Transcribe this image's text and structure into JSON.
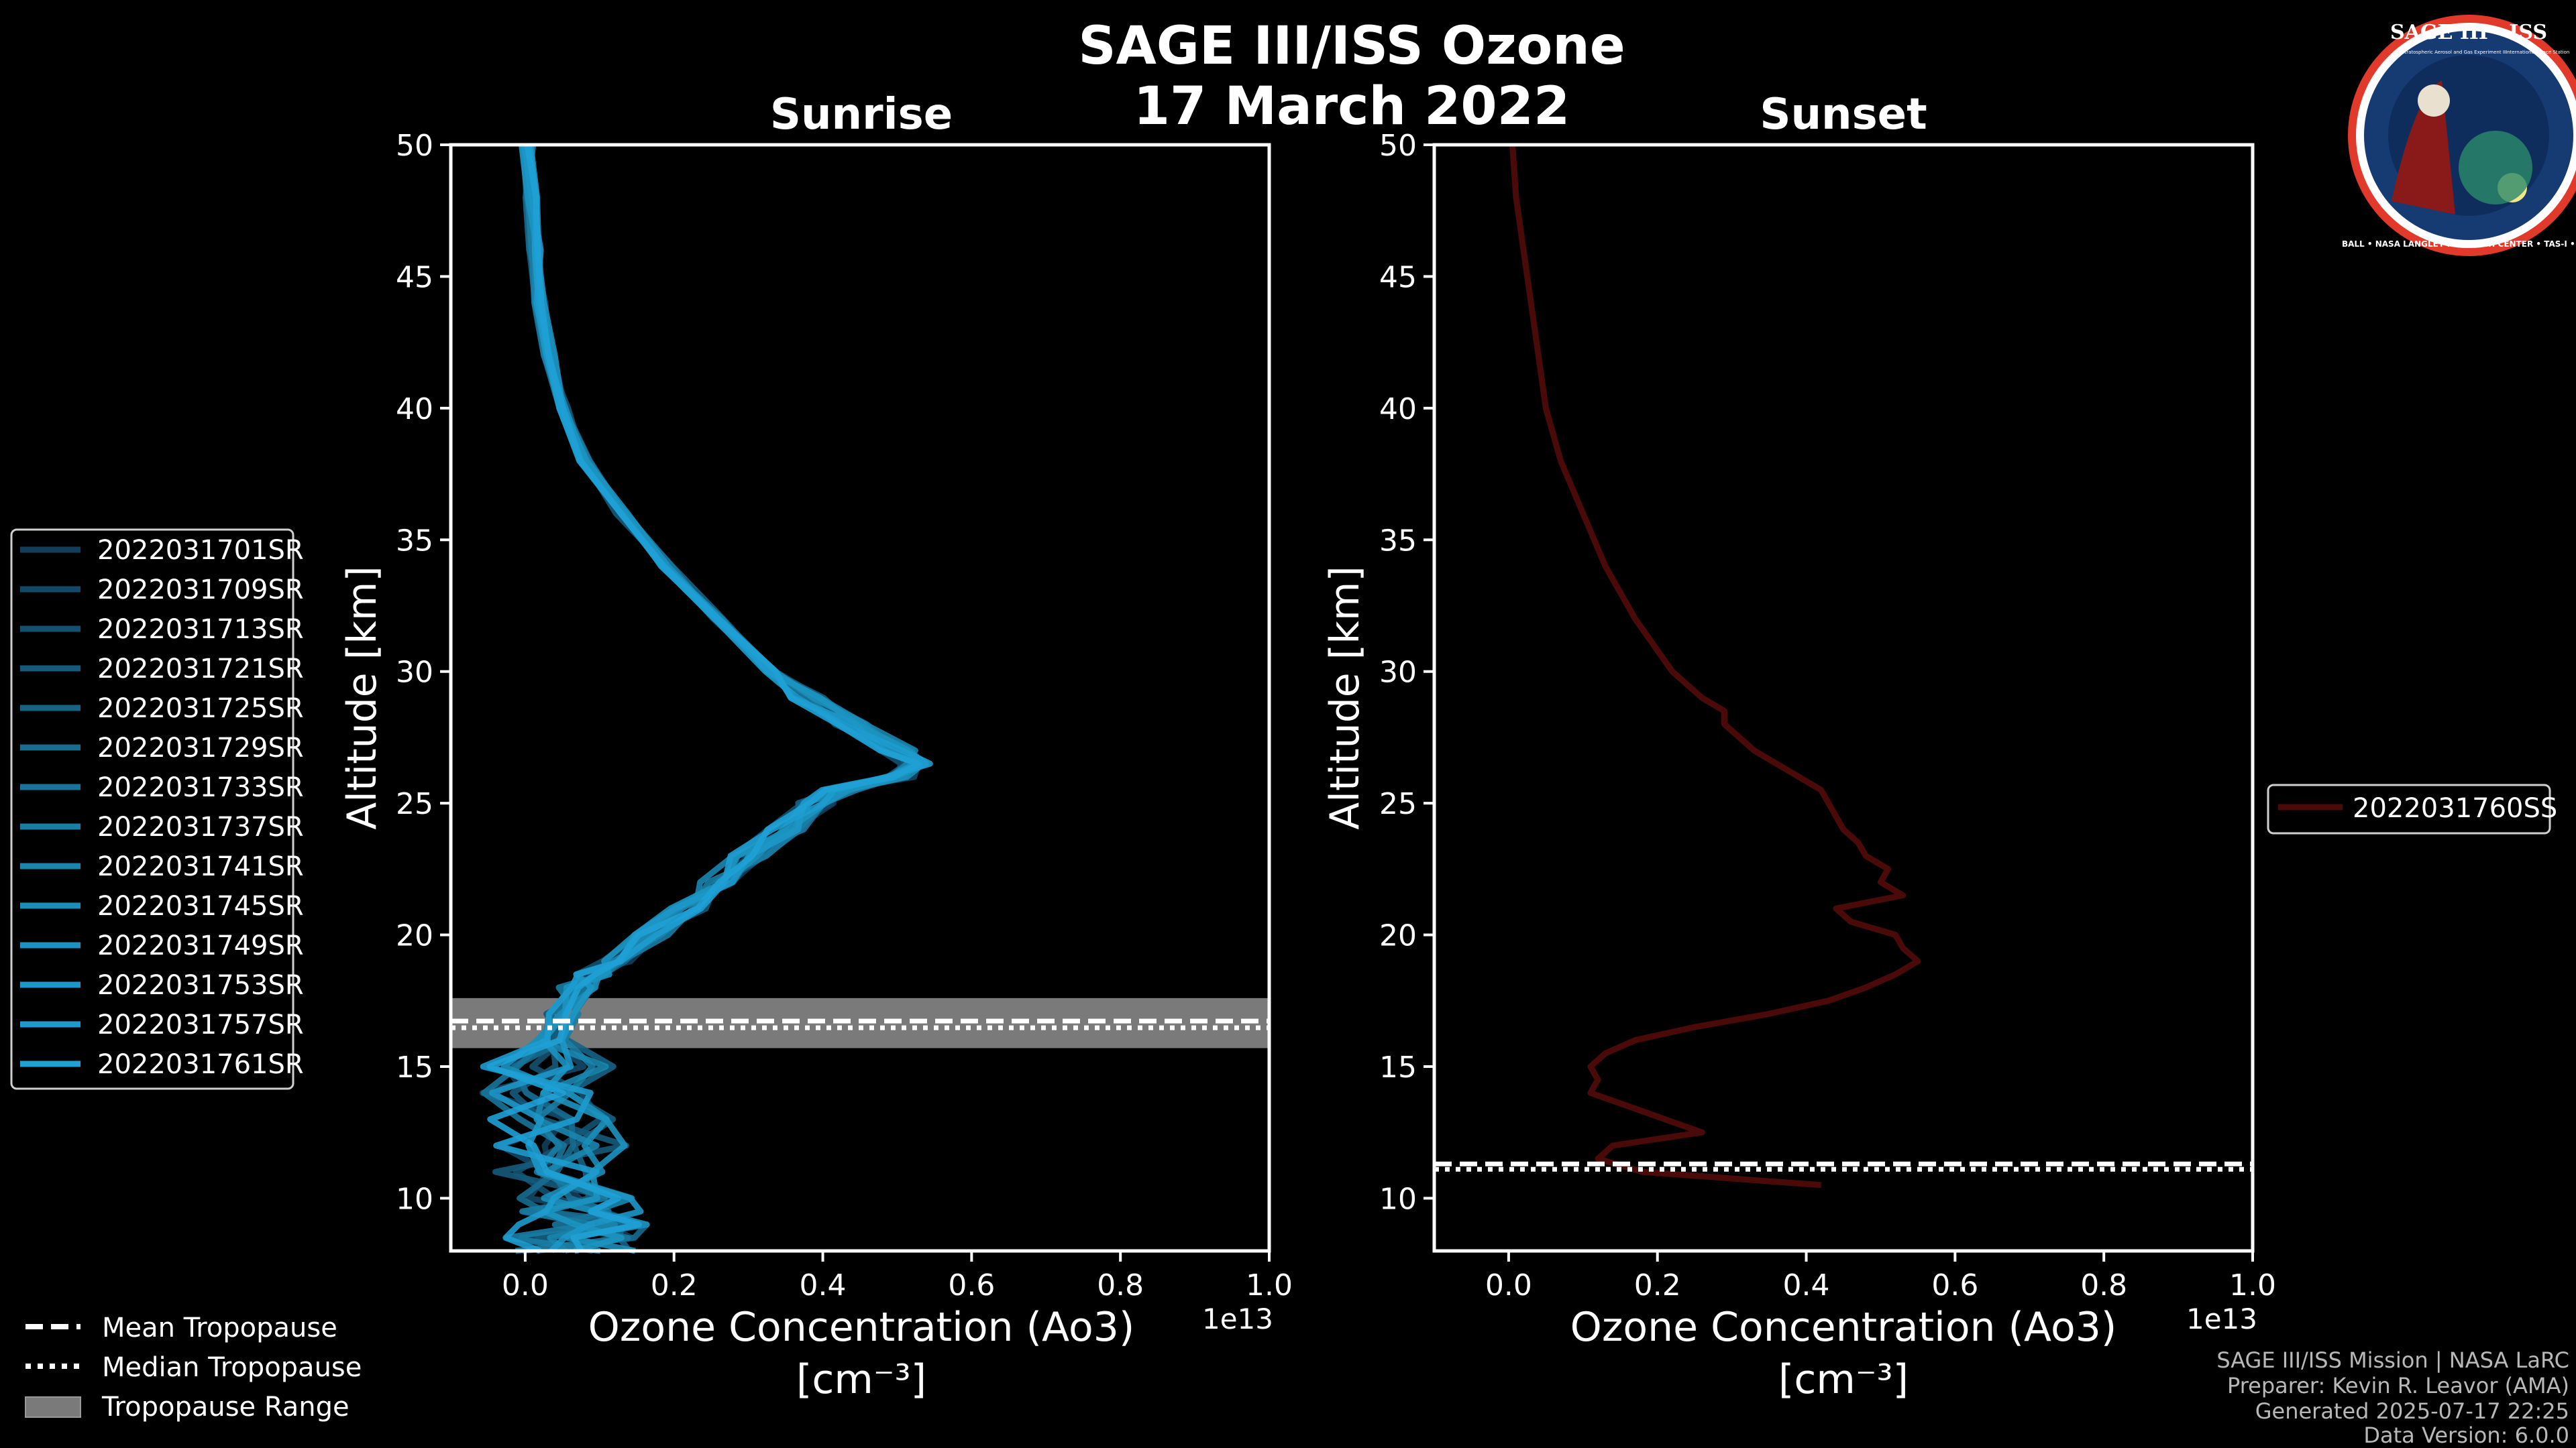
{
  "title_line1": "SAGE III/ISS Ozone",
  "title_line2": "17 March 2022",
  "logo": {
    "name": "SAGE III · ISS",
    "subtitle_left": "Stratospheric Aerosol and Gas Experiment III",
    "subtitle_right": "International Space Station",
    "ring_text": "BALL • NASA LANGLEY RESEARCH CENTER • TAS-I • ESA"
  },
  "footer": {
    "line1": "SAGE III/ISS Mission | NASA LaRC",
    "line2": "Preparer: Kevin R. Leavor (AMA)",
    "line3": "Generated 2025-07-17 22:25",
    "line4": "Data Version: 6.0.0"
  },
  "colors": {
    "sunrise": "#1a8fd1",
    "sunset": "#4a0a0a",
    "tropopause_band": "#7a7a7a",
    "tropopause_line": "#ffffff"
  },
  "bottom_legend": {
    "mean": "Mean Tropopause",
    "median": "Median Tropopause",
    "range": "Tropopause Range"
  },
  "chart_data": [
    {
      "type": "line",
      "panel": "sunrise",
      "title": "Sunrise",
      "xlabel_line1": "Ozone Concentration (Ao3)",
      "xlabel_line2": "[cm⁻³]",
      "ylabel": "Altitude [km]",
      "offset_label": "1e13",
      "xlim": [
        -0.1,
        1.0
      ],
      "ylim": [
        8,
        50
      ],
      "xticks": [
        0.0,
        0.2,
        0.4,
        0.6,
        0.8,
        1.0
      ],
      "xtick_labels": [
        "0.0",
        "0.2",
        "0.4",
        "0.6",
        "0.8",
        "1.0"
      ],
      "yticks": [
        10,
        15,
        20,
        25,
        30,
        35,
        40,
        45,
        50
      ],
      "ytick_labels": [
        "10",
        "15",
        "20",
        "25",
        "30",
        "35",
        "40",
        "45",
        "50"
      ],
      "tropopause": {
        "mean": 16.6,
        "median": 16.6,
        "range": [
          15.7,
          17.6
        ]
      },
      "legend": [
        "2022031701SR",
        "2022031709SR",
        "2022031713SR",
        "2022031721SR",
        "2022031725SR",
        "2022031729SR",
        "2022031733SR",
        "2022031737SR",
        "2022031741SR",
        "2022031745SR",
        "2022031749SR",
        "2022031753SR",
        "2022031757SR",
        "2022031761SR"
      ],
      "series_colors": [
        "#123e5c",
        "#134866",
        "#145170",
        "#155a7b",
        "#166385",
        "#176c8f",
        "#18749a",
        "#197da4",
        "#1a86ae",
        "#1b8eb8",
        "#1c93c0",
        "#1d97c8",
        "#1e9ccf",
        "#1fa1d6"
      ],
      "profile_alt": [
        50,
        48,
        46,
        44,
        42,
        40,
        38,
        36,
        34,
        32,
        30,
        29,
        28,
        27,
        26.5,
        26,
        25.5,
        25,
        24,
        23,
        22,
        21,
        20,
        19,
        18.5,
        18,
        17,
        16,
        15,
        14,
        13,
        12,
        11,
        10,
        9.5,
        9,
        8.5,
        8
      ],
      "profile_base": [
        0.003,
        0.008,
        0.013,
        0.02,
        0.032,
        0.05,
        0.08,
        0.13,
        0.19,
        0.26,
        0.33,
        0.38,
        0.44,
        0.5,
        0.52,
        0.5,
        0.42,
        0.39,
        0.35,
        0.3,
        0.26,
        0.22,
        0.17,
        0.12,
        0.09,
        0.07,
        0.05,
        0.035,
        0.03,
        0.03,
        0.04,
        0.05,
        0.05,
        0.06,
        0.07,
        0.08,
        0.06,
        0.06
      ]
    },
    {
      "type": "line",
      "panel": "sunset",
      "title": "Sunset",
      "xlabel_line1": "Ozone Concentration (Ao3)",
      "xlabel_line2": "[cm⁻³]",
      "ylabel": "Altitude [km]",
      "offset_label": "1e13",
      "xlim": [
        -0.1,
        1.0
      ],
      "ylim": [
        8,
        50
      ],
      "xticks": [
        0.0,
        0.2,
        0.4,
        0.6,
        0.8,
        1.0
      ],
      "xtick_labels": [
        "0.0",
        "0.2",
        "0.4",
        "0.6",
        "0.8",
        "1.0"
      ],
      "yticks": [
        10,
        15,
        20,
        25,
        30,
        35,
        40,
        45,
        50
      ],
      "ytick_labels": [
        "10",
        "15",
        "20",
        "25",
        "30",
        "35",
        "40",
        "45",
        "50"
      ],
      "tropopause": {
        "mean": 11.2,
        "median": 11.2
      },
      "legend": [
        "2022031760SS"
      ],
      "series": [
        {
          "name": "2022031760SS",
          "altitude": [
            50,
            48,
            46,
            44,
            42,
            40,
            38,
            36,
            34,
            32,
            30,
            29,
            28.5,
            28,
            27.5,
            27,
            26.5,
            26,
            25.5,
            25,
            24.5,
            24,
            23.5,
            23,
            22.5,
            22,
            21.5,
            21,
            20.5,
            20,
            19.5,
            19,
            18.5,
            18,
            17.5,
            17,
            16.5,
            16,
            15.5,
            15,
            14.5,
            14,
            13.5,
            13,
            12.5,
            12,
            11.5,
            11,
            10.5
          ],
          "ozone": [
            0.005,
            0.01,
            0.02,
            0.03,
            0.04,
            0.05,
            0.07,
            0.1,
            0.13,
            0.17,
            0.22,
            0.26,
            0.29,
            0.29,
            0.31,
            0.33,
            0.36,
            0.39,
            0.42,
            0.43,
            0.44,
            0.45,
            0.47,
            0.48,
            0.51,
            0.5,
            0.53,
            0.44,
            0.46,
            0.52,
            0.53,
            0.55,
            0.52,
            0.48,
            0.43,
            0.35,
            0.25,
            0.17,
            0.13,
            0.11,
            0.12,
            0.11,
            0.16,
            0.21,
            0.26,
            0.14,
            0.12,
            0.18,
            0.42
          ]
        }
      ]
    }
  ]
}
